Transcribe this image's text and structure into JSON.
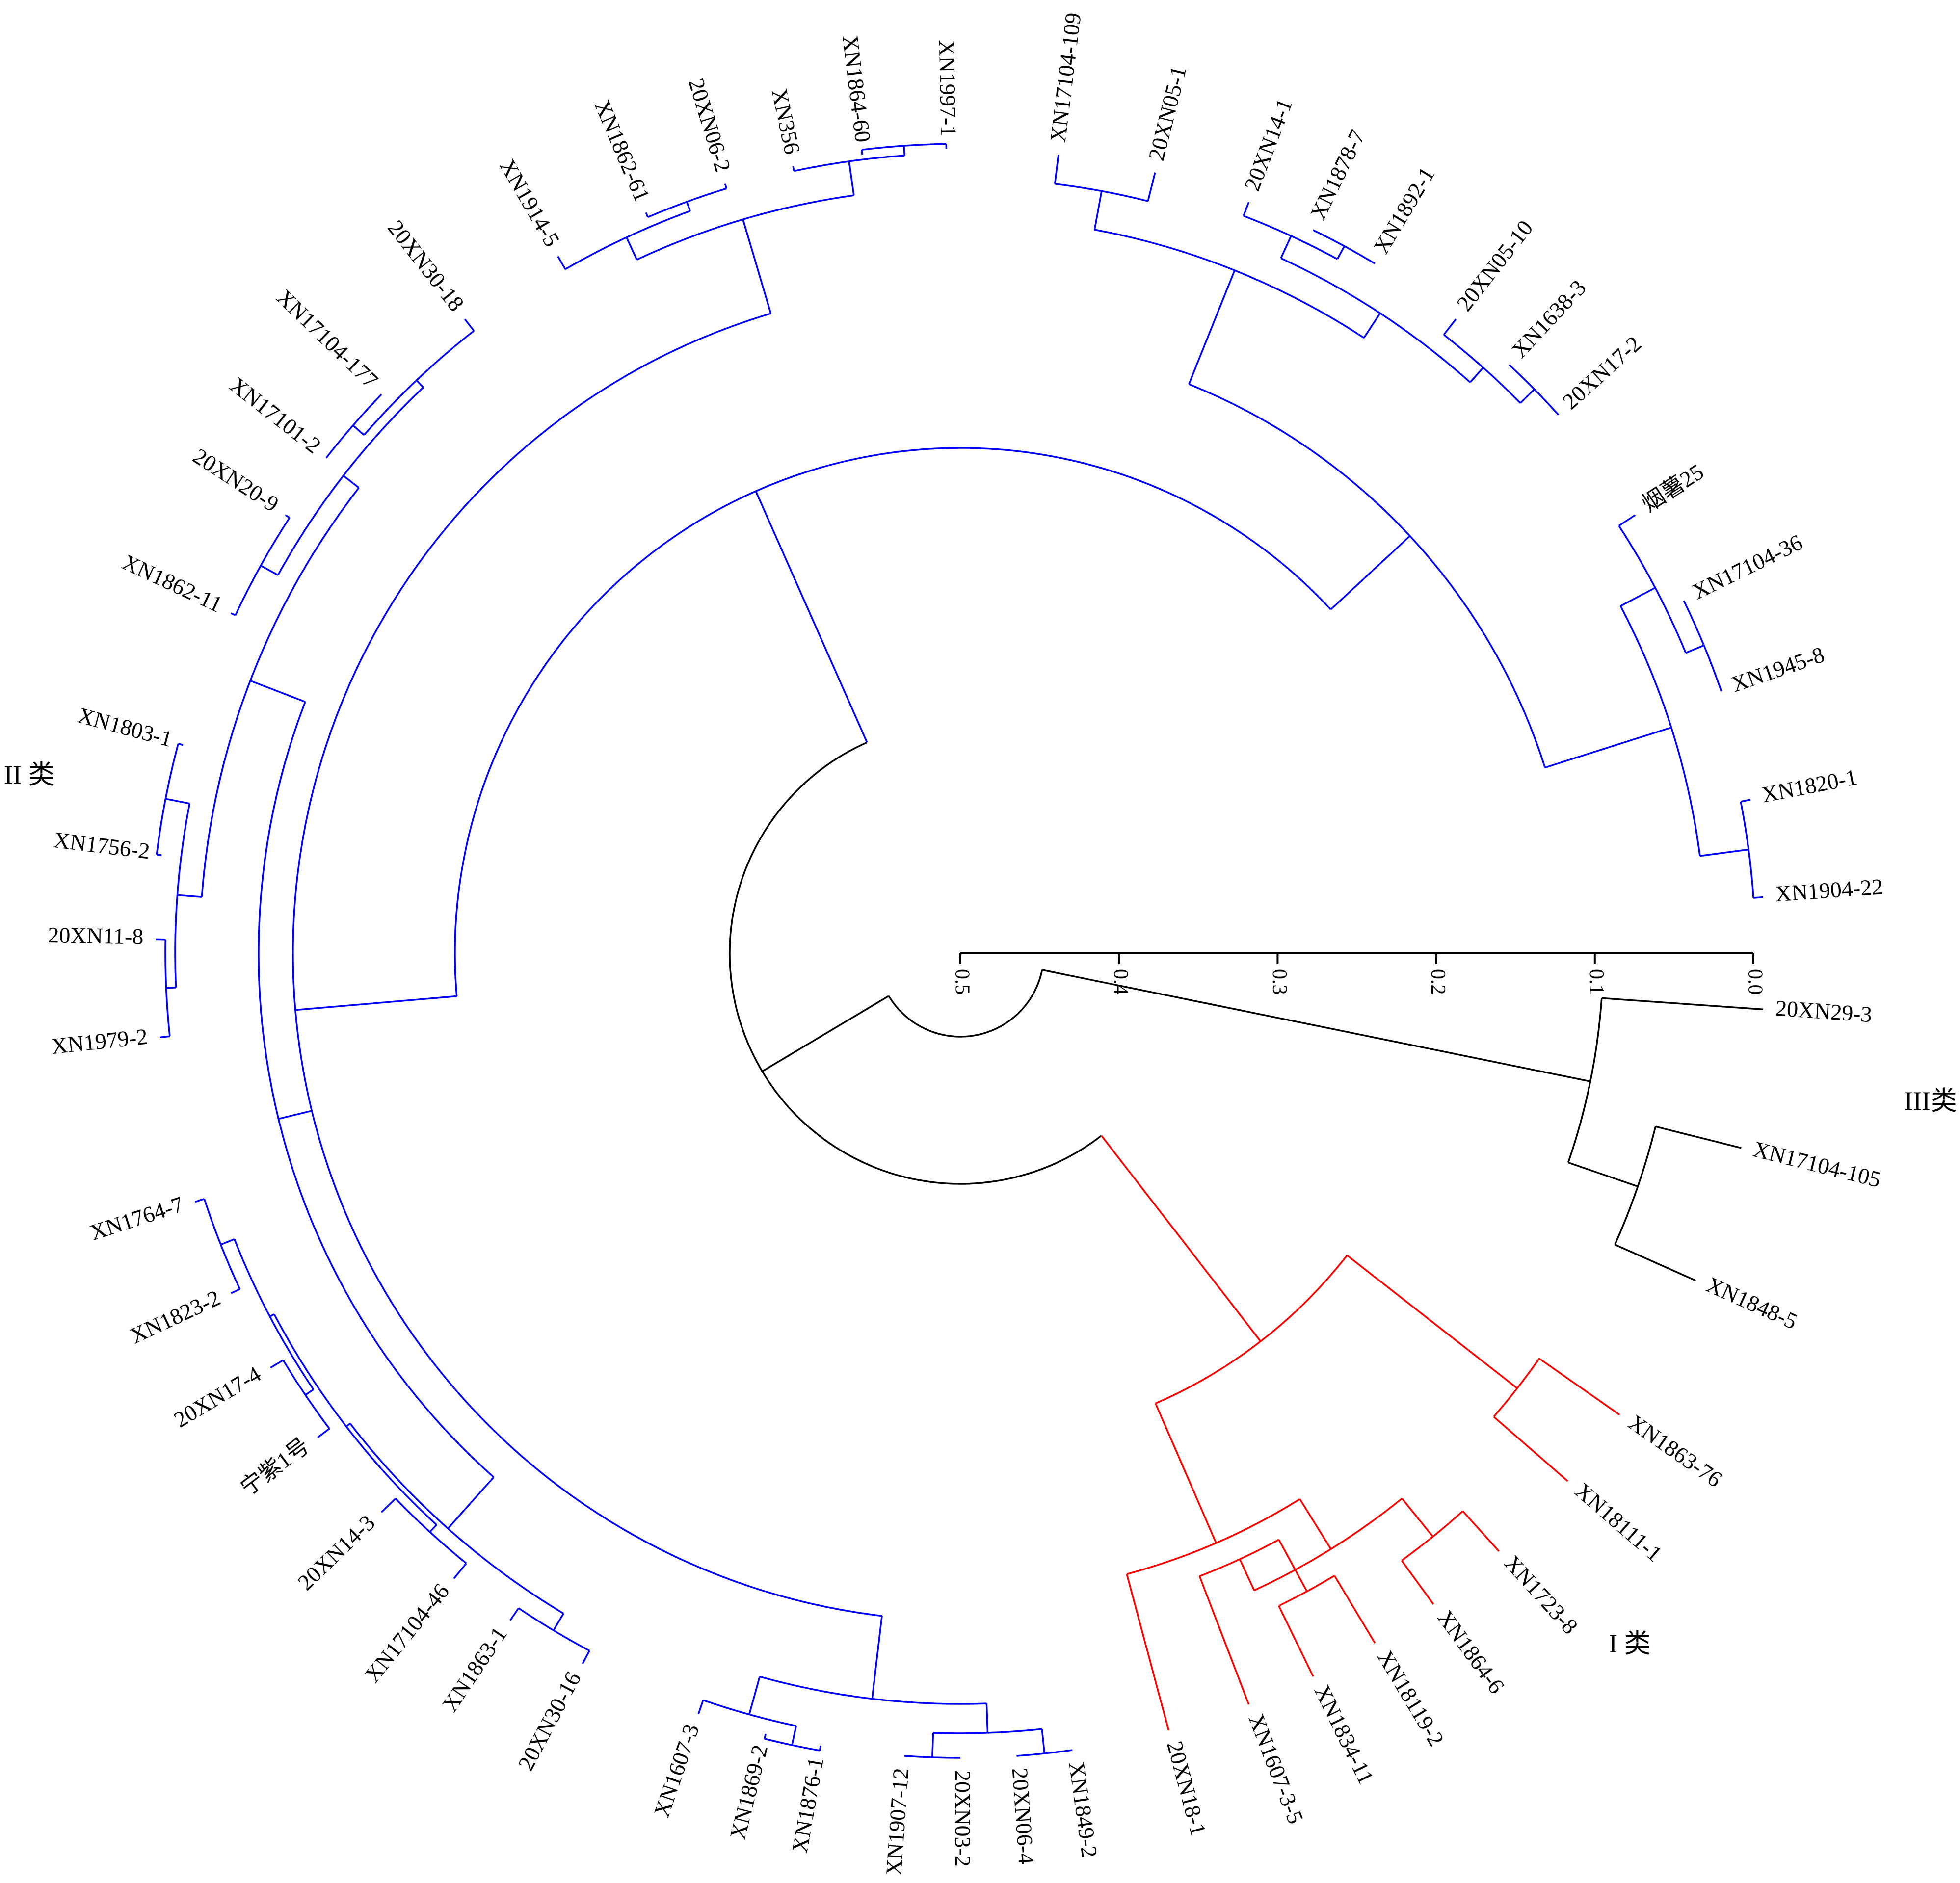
{
  "figure": {
    "type": "circular-dendrogram",
    "colors": {
      "class_I": "#ff0000",
      "class_II": "#0000ff",
      "class_III": "#000000",
      "backbone": "#000000"
    }
  },
  "class_labels": {
    "class_I": "I 类",
    "class_II": "II 类",
    "class_III": "III类"
  },
  "scale": {
    "ticks": [
      "0.5",
      "0.4",
      "0.3",
      "0.2",
      "0.1",
      "0.0"
    ],
    "range": [
      0.5,
      0.0
    ]
  },
  "groups": {
    "class_III": [
      "20XN29-3",
      "XN17104-105",
      "XN1848-5"
    ],
    "class_I": [
      "XN1863-76",
      "XN18111-1",
      "XN1723-8",
      "XN1864-6",
      "XN18119-2",
      "XN1834-11",
      "XN1607-3-5",
      "20XN18-1"
    ],
    "class_II": [
      "XN1849-2",
      "20XN06-4",
      "20XN03-2",
      "XN1907-12",
      "XN1876-1",
      "XN1869-2",
      "XN1607-3",
      "20XN30-16",
      "XN1863-1",
      "XN17104-46",
      "20XN14-3",
      "宁紫1号",
      "20XN17-4",
      "XN1823-2",
      "XN1764-7",
      "XN1979-2",
      "20XN11-8",
      "XN1756-2",
      "XN1803-1",
      "XN1862-11",
      "20XN20-9",
      "XN17101-2",
      "XN17104-177",
      "20XN30-18",
      "XN1914-5",
      "XN1862-61",
      "20XN06-2",
      "XN356",
      "XN1864-60",
      "XN1997-1",
      "XN17104-109",
      "20XN05-1",
      "20XN14-1",
      "XN1878-7",
      "XN1892-1",
      "20XN05-10",
      "XN1638-3",
      "20XN17-2",
      "烟薯25",
      "XN17104-36",
      "XN1945-8",
      "XN1820-1",
      "XN1904-22"
    ]
  },
  "leaves": [
    {
      "label": "20XN29-3",
      "cls": "class_III",
      "angle": 4
    },
    {
      "label": "XN17104-105",
      "cls": "class_III",
      "angle": 14
    },
    {
      "label": "XN1848-5",
      "cls": "class_III",
      "angle": 24
    },
    {
      "label": "XN1863-76",
      "cls": "class_I",
      "angle": 35
    },
    {
      "label": "XN18111-1",
      "cls": "class_I",
      "angle": 41
    },
    {
      "label": "XN1723-8",
      "cls": "class_I",
      "angle": 48
    },
    {
      "label": "XN1864-6",
      "cls": "class_I",
      "angle": 54
    },
    {
      "label": "XN18119-2",
      "cls": "class_I",
      "angle": 59
    },
    {
      "label": "XN1834-11",
      "cls": "class_I",
      "angle": 64
    },
    {
      "label": "XN1607-3-5",
      "cls": "class_I",
      "angle": 69
    },
    {
      "label": "20XN18-1",
      "cls": "class_I",
      "angle": 75
    },
    {
      "label": "XN1849-2",
      "cls": "class_II",
      "angle": 82
    },
    {
      "label": "20XN06-4",
      "cls": "class_II",
      "angle": 86
    },
    {
      "label": "20XN03-2",
      "cls": "class_II",
      "angle": 90
    },
    {
      "label": "XN1907-12",
      "cls": "class_II",
      "angle": 94
    },
    {
      "label": "XN1876-1",
      "cls": "class_II",
      "angle": 100
    },
    {
      "label": "XN1869-2",
      "cls": "class_II",
      "angle": 104
    },
    {
      "label": "XN1607-3",
      "cls": "class_II",
      "angle": 109
    },
    {
      "label": "20XN30-16",
      "cls": "class_II",
      "angle": 118
    },
    {
      "label": "XN1863-1",
      "cls": "class_II",
      "angle": 124
    },
    {
      "label": "XN17104-46",
      "cls": "class_II",
      "angle": 129
    },
    {
      "label": "20XN14-3",
      "cls": "class_II",
      "angle": 136
    },
    {
      "label": "宁紫1号",
      "cls": "class_II",
      "angle": 143
    },
    {
      "label": "20XN17-4",
      "cls": "class_II",
      "angle": 149
    },
    {
      "label": "XN1823-2",
      "cls": "class_II",
      "angle": 155
    },
    {
      "label": "XN1764-7",
      "cls": "class_II",
      "angle": 162
    },
    {
      "label": "XN1979-2",
      "cls": "class_II",
      "angle": 174
    },
    {
      "label": "20XN11-8",
      "cls": "class_II",
      "angle": 181
    },
    {
      "label": "XN1756-2",
      "cls": "class_II",
      "angle": 187
    },
    {
      "label": "XN1803-1",
      "cls": "class_II",
      "angle": 195
    },
    {
      "label": "XN1862-11",
      "cls": "class_II",
      "angle": 205
    },
    {
      "label": "20XN20-9",
      "cls": "class_II",
      "angle": 213
    },
    {
      "label": "XN17101-2",
      "cls": "class_II",
      "angle": 218
    },
    {
      "label": "XN17104-177",
      "cls": "class_II",
      "angle": 224
    },
    {
      "label": "20XN30-18",
      "cls": "class_II",
      "angle": 232
    },
    {
      "label": "XN1914-5",
      "cls": "class_II",
      "angle": 240
    },
    {
      "label": "XN1862-61",
      "cls": "class_II",
      "angle": 247
    },
    {
      "label": "20XN06-2",
      "cls": "class_II",
      "angle": 253
    },
    {
      "label": "XN356",
      "cls": "class_II",
      "angle": 258
    },
    {
      "label": "XN1864-60",
      "cls": "class_II",
      "angle": 263
    },
    {
      "label": "XN1997-1",
      "cls": "class_II",
      "angle": 269
    },
    {
      "label": "XN17104-109",
      "cls": "class_II",
      "angle": 277
    },
    {
      "label": "20XN05-1",
      "cls": "class_II",
      "angle": 284
    },
    {
      "label": "20XN14-1",
      "cls": "class_II",
      "angle": 291
    },
    {
      "label": "XN1878-7",
      "cls": "class_II",
      "angle": 296
    },
    {
      "label": "XN1892-1",
      "cls": "class_II",
      "angle": 301
    },
    {
      "label": "20XN05-10",
      "cls": "class_II",
      "angle": 308
    },
    {
      "label": "XN1638-3",
      "cls": "class_II",
      "angle": 313
    },
    {
      "label": "20XN17-2",
      "cls": "class_II",
      "angle": 318
    },
    {
      "label": "烟薯25",
      "cls": "class_II",
      "angle": 327
    },
    {
      "label": "XN17104-36",
      "cls": "class_II",
      "angle": 334
    },
    {
      "label": "XN1945-8",
      "cls": "class_II",
      "angle": 341
    },
    {
      "label": "XN1820-1",
      "cls": "class_II",
      "angle": 349
    },
    {
      "label": "XN1904-22",
      "cls": "class_II",
      "angle": 356
    }
  ]
}
